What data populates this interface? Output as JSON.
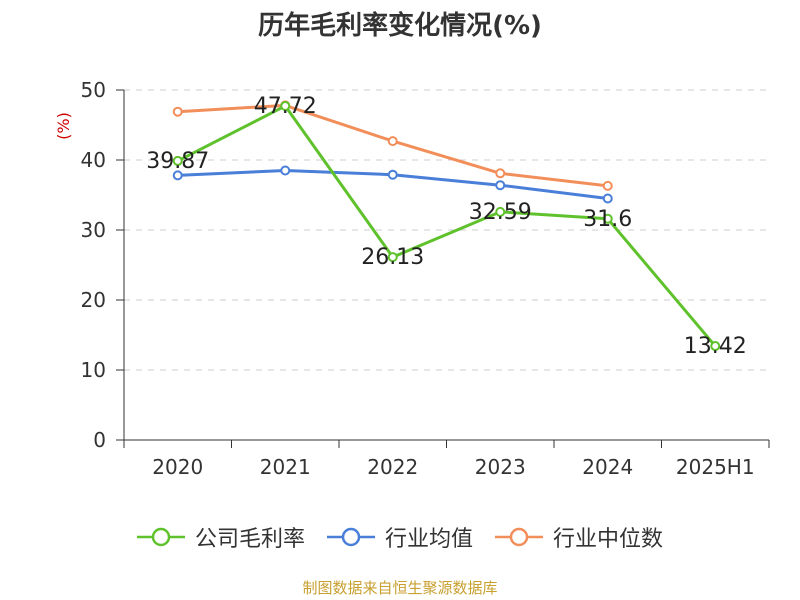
{
  "chart_data": {
    "type": "line",
    "title": "历年毛利率变化情况(%)",
    "ylabel": "(%)",
    "xlabel": "",
    "categories": [
      "2020",
      "2021",
      "2022",
      "2023",
      "2024",
      "2025H1"
    ],
    "ylim": [
      0,
      50
    ],
    "yticks": [
      0,
      10,
      20,
      30,
      40,
      50
    ],
    "grid": true,
    "legend_position": "bottom",
    "series": [
      {
        "name": "公司毛利率",
        "color": "#5fc22c",
        "values": [
          39.87,
          47.72,
          26.13,
          32.59,
          31.6,
          13.42
        ],
        "labels": [
          "39.87",
          "47.72",
          "26.13",
          "32.59",
          "31.6",
          "13.42"
        ]
      },
      {
        "name": "行业均值",
        "color": "#4a7fd9",
        "values": [
          37.8,
          38.5,
          37.9,
          36.4,
          34.5,
          null
        ]
      },
      {
        "name": "行业中位数",
        "color": "#f28e5a",
        "values": [
          46.9,
          47.8,
          42.7,
          38.1,
          36.3,
          null
        ]
      }
    ]
  },
  "footer": {
    "text": "制图数据来自恒生聚源数据库",
    "color": "#c8a030"
  },
  "colors": {
    "axis": "#333333",
    "grid": "#cccccc",
    "ylabel": "#cc0000",
    "text": "#333333"
  }
}
